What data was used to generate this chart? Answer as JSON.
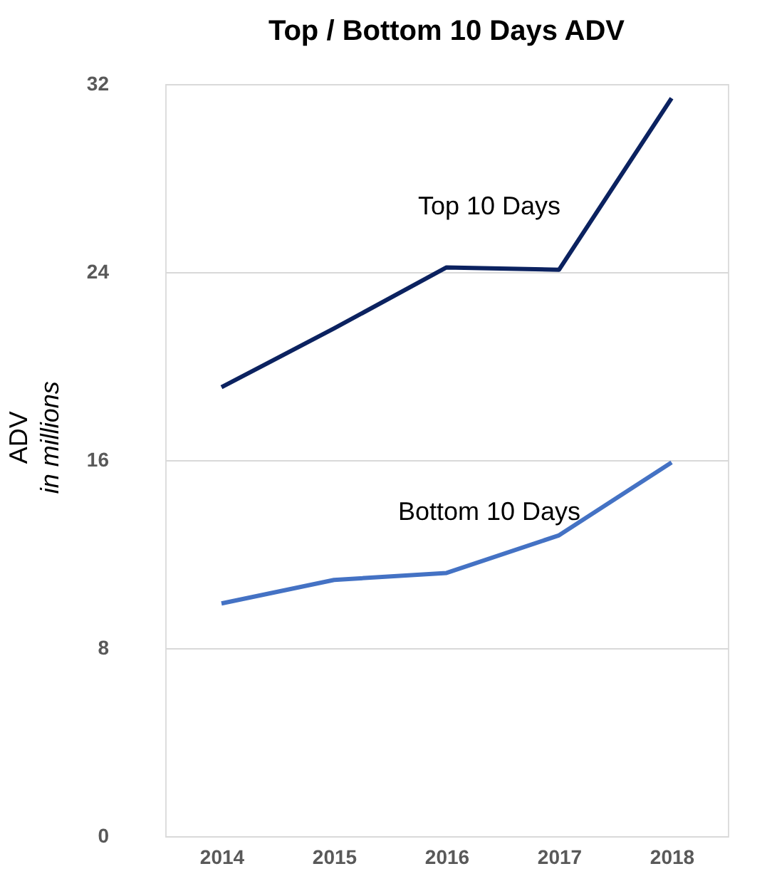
{
  "chart_data": {
    "type": "line",
    "title": "Top / Bottom 10 Days ADV",
    "ylabel": "ADV",
    "annotations": [
      "in millions"
    ],
    "categories": [
      "2014",
      "2015",
      "2016",
      "2017",
      "2018"
    ],
    "series": [
      {
        "name": "Top 10 Days",
        "color": "#0b2260",
        "values": [
          19.1,
          21.6,
          24.2,
          24.1,
          31.4
        ]
      },
      {
        "name": "Bottom 10 Days",
        "color": "#4472c4",
        "values": [
          9.9,
          10.9,
          11.2,
          12.8,
          15.9
        ]
      }
    ],
    "ylim": [
      0,
      32
    ],
    "yticks": [
      0,
      8,
      16,
      24,
      32
    ],
    "grid": "y",
    "marker": "none",
    "line_style": "solid"
  }
}
